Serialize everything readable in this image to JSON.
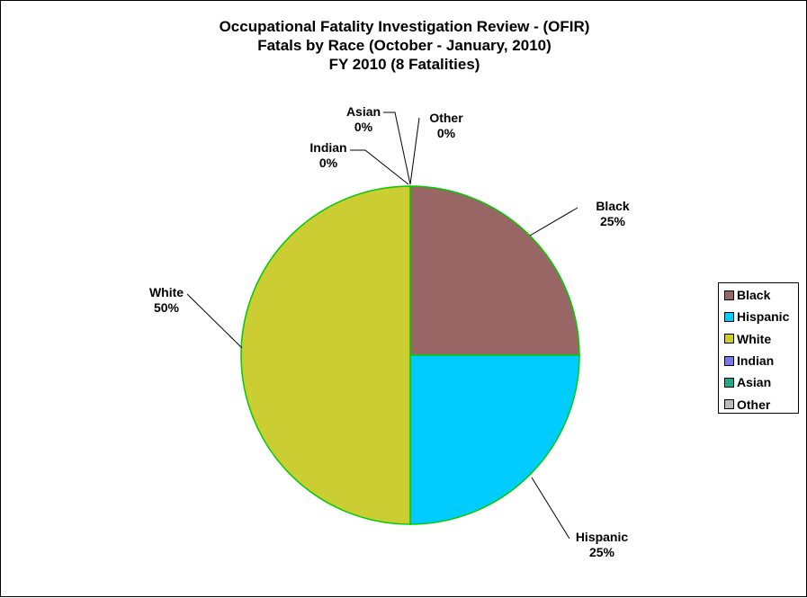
{
  "chart_data": {
    "type": "pie",
    "title_lines": [
      "Occupational Fatality Investigation Review - (OFIR)",
      "Fatals by Race (October - January, 2010)",
      "FY 2010 (8 Fatalities)"
    ],
    "slices": [
      {
        "name": "Black",
        "value": 25,
        "label": "25%",
        "color": "#996666"
      },
      {
        "name": "Hispanic",
        "value": 25,
        "label": "25%",
        "color": "#00ccff"
      },
      {
        "name": "White",
        "value": 50,
        "label": "50%",
        "color": "#cccc33"
      },
      {
        "name": "Indian",
        "value": 0,
        "label": "0%",
        "color": "#7777ee"
      },
      {
        "name": "Asian",
        "value": 0,
        "label": "0%",
        "color": "#22aa88"
      },
      {
        "name": "Other",
        "value": 0,
        "label": "0%",
        "color": "#bbbbbb"
      }
    ],
    "slice_border_color": "#00cc00",
    "legend_position": "right"
  }
}
